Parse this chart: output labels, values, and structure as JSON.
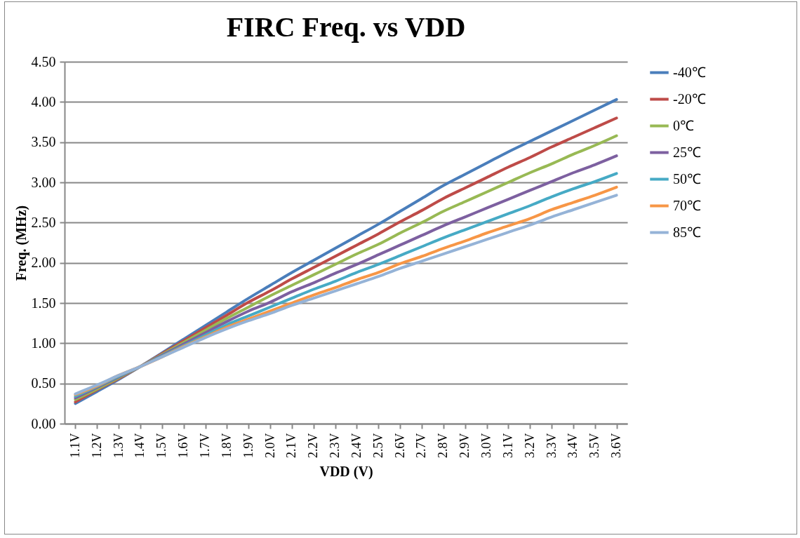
{
  "chart_data": {
    "type": "line",
    "title": "FIRC Freq. vs VDD",
    "xlabel": "VDD (V)",
    "ylabel": "Freq. (MHz)",
    "categories": [
      "1.1V",
      "1.2V",
      "1.3V",
      "1.4V",
      "1.5V",
      "1.6V",
      "1.7V",
      "1.8V",
      "1.9V",
      "2.0V",
      "2.1V",
      "2.2V",
      "2.3V",
      "2.4V",
      "2.5V",
      "2.6V",
      "2.7V",
      "2.8V",
      "2.9V",
      "3.0V",
      "3.1V",
      "3.2V",
      "3.3V",
      "3.4V",
      "3.5V",
      "3.6V"
    ],
    "series": [
      {
        "name": "-40℃",
        "color": "#4a7ebb",
        "values": [
          0.25,
          0.4,
          0.55,
          0.71,
          0.88,
          1.05,
          1.22,
          1.39,
          1.56,
          1.72,
          1.88,
          2.03,
          2.18,
          2.33,
          2.48,
          2.64,
          2.8,
          2.96,
          3.1,
          3.24,
          3.38,
          3.51,
          3.64,
          3.77,
          3.9,
          4.03
        ]
      },
      {
        "name": "-20℃",
        "color": "#be4b48",
        "values": [
          0.27,
          0.42,
          0.56,
          0.71,
          0.87,
          1.03,
          1.19,
          1.35,
          1.51,
          1.65,
          1.8,
          1.94,
          2.08,
          2.22,
          2.36,
          2.51,
          2.65,
          2.8,
          2.93,
          3.06,
          3.19,
          3.31,
          3.44,
          3.56,
          3.68,
          3.8
        ]
      },
      {
        "name": "0℃",
        "color": "#98b954",
        "values": [
          0.3,
          0.43,
          0.57,
          0.71,
          0.86,
          1.01,
          1.16,
          1.31,
          1.45,
          1.59,
          1.72,
          1.85,
          1.98,
          2.11,
          2.23,
          2.37,
          2.5,
          2.64,
          2.76,
          2.88,
          3.0,
          3.12,
          3.23,
          3.35,
          3.46,
          3.58
        ]
      },
      {
        "name": "25℃",
        "color": "#7d60a0",
        "values": [
          0.32,
          0.45,
          0.58,
          0.71,
          0.85,
          0.99,
          1.13,
          1.27,
          1.4,
          1.51,
          1.64,
          1.75,
          1.87,
          1.98,
          2.1,
          2.22,
          2.34,
          2.46,
          2.57,
          2.68,
          2.79,
          2.9,
          3.01,
          3.12,
          3.22,
          3.33
        ]
      },
      {
        "name": "50℃",
        "color": "#46aac5",
        "values": [
          0.34,
          0.46,
          0.59,
          0.71,
          0.84,
          0.97,
          1.1,
          1.23,
          1.34,
          1.45,
          1.56,
          1.67,
          1.77,
          1.88,
          1.98,
          2.09,
          2.2,
          2.31,
          2.41,
          2.51,
          2.61,
          2.71,
          2.82,
          2.92,
          3.01,
          3.11
        ]
      },
      {
        "name": "70℃",
        "color": "#f79646",
        "values": [
          0.36,
          0.47,
          0.6,
          0.71,
          0.83,
          0.96,
          1.08,
          1.2,
          1.3,
          1.4,
          1.5,
          1.6,
          1.69,
          1.79,
          1.88,
          1.99,
          2.08,
          2.18,
          2.27,
          2.37,
          2.46,
          2.55,
          2.66,
          2.75,
          2.84,
          2.94
        ]
      },
      {
        "name": "85℃",
        "color": "#95b3d7",
        "values": [
          0.37,
          0.48,
          0.6,
          0.71,
          0.83,
          0.95,
          1.07,
          1.18,
          1.28,
          1.37,
          1.47,
          1.56,
          1.65,
          1.74,
          1.83,
          1.93,
          2.02,
          2.11,
          2.2,
          2.29,
          2.38,
          2.47,
          2.57,
          2.66,
          2.75,
          2.84
        ]
      }
    ],
    "ylim": [
      0,
      4.5
    ],
    "yticks": [
      {
        "value": 0,
        "label": "0.00"
      },
      {
        "value": 0.5,
        "label": "0.50"
      },
      {
        "value": 1,
        "label": "1.00"
      },
      {
        "value": 1.5,
        "label": "1.50"
      },
      {
        "value": 2,
        "label": "2.00"
      },
      {
        "value": 2.5,
        "label": "2.50"
      },
      {
        "value": 3,
        "label": "3.00"
      },
      {
        "value": 3.5,
        "label": "3.50"
      },
      {
        "value": 4,
        "label": "4.00"
      },
      {
        "value": 4.5,
        "label": "4.50"
      }
    ],
    "grid": "y",
    "legend": "right",
    "marker": "none",
    "line_style": "solid"
  }
}
